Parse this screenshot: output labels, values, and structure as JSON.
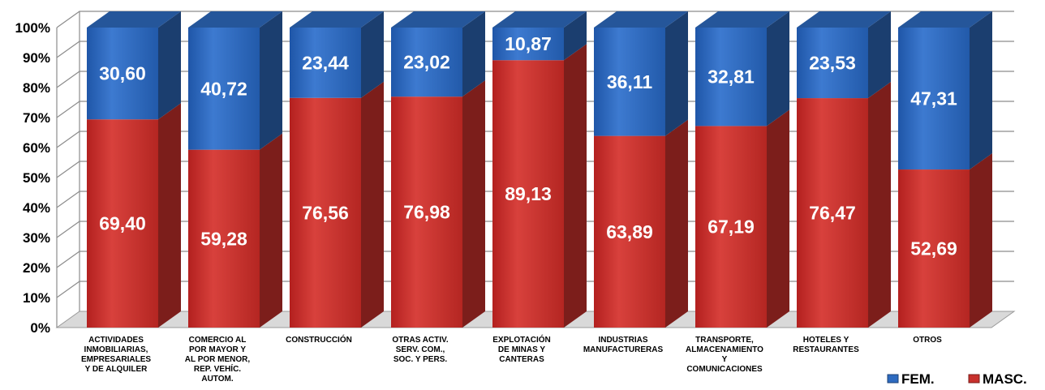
{
  "chart_data": {
    "type": "bar",
    "stacked": true,
    "percent": true,
    "categories": [
      [
        "ACTIVIDADES",
        "INMOBILIARIAS,",
        "EMPRESARIALES",
        "Y DE ALQUILER"
      ],
      [
        "COMERCIO AL",
        "POR MAYOR Y",
        "AL POR MENOR,",
        "REP. VEHÍC.",
        "AUTOM."
      ],
      [
        "CONSTRUCCIÓN"
      ],
      [
        "OTRAS ACTIV.",
        "SERV. COM.,",
        "SOC. Y PERS."
      ],
      [
        "EXPLOTACIÓN",
        "DE MINAS Y",
        "CANTERAS"
      ],
      [
        "INDUSTRIAS",
        "MANUFACTURERAS"
      ],
      [
        "TRANSPORTE,",
        "ALMACENAMIENTO",
        "Y",
        "COMUNICACIONES"
      ],
      [
        "HOTELES Y",
        "RESTAURANTES"
      ],
      [
        "OTROS"
      ]
    ],
    "series": [
      {
        "name": "MASC.",
        "color": "#c8302c",
        "values": [
          69.4,
          59.28,
          76.56,
          76.98,
          89.13,
          63.89,
          67.19,
          76.47,
          52.69
        ],
        "labels": [
          "69,40",
          "59,28",
          "76,56",
          "76,98",
          "89,13",
          "63,89",
          "67,19",
          "76,47",
          "52,69"
        ]
      },
      {
        "name": "FEM.",
        "color": "#2e6bc0",
        "values": [
          30.6,
          40.72,
          23.44,
          23.02,
          10.87,
          36.11,
          32.81,
          23.53,
          47.31
        ],
        "labels": [
          "30,60",
          "40,72",
          "23,44",
          "23,02",
          "10,87",
          "36,11",
          "32,81",
          "23,53",
          "47,31"
        ]
      }
    ],
    "yticks": [
      "0%",
      "10%",
      "20%",
      "30%",
      "40%",
      "50%",
      "60%",
      "70%",
      "80%",
      "90%",
      "100%"
    ],
    "ylim": [
      0,
      100
    ],
    "grid": true,
    "legend": {
      "position": "bottom-right",
      "entries": [
        {
          "label": "FEM.",
          "color": "#2e6bc0"
        },
        {
          "label": "MASC.",
          "color": "#c8302c"
        }
      ]
    },
    "style": "3d"
  }
}
